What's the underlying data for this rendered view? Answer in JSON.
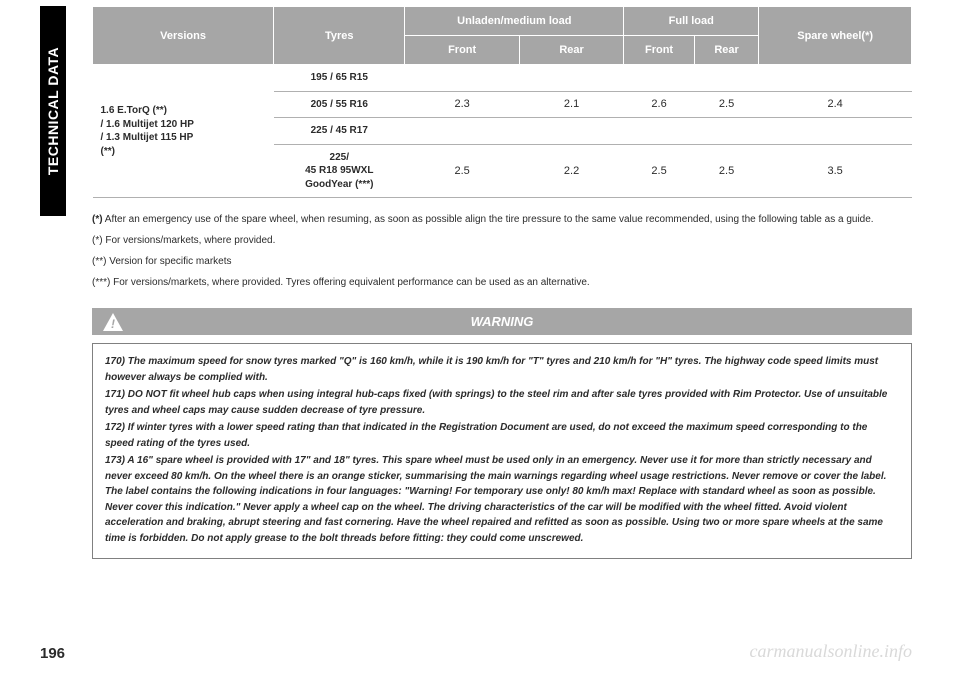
{
  "side_tab": "TECHNICAL DATA",
  "colors": {
    "header_bg": "#a6a6a6",
    "header_fg": "#ffffff",
    "cell_border": "#b0b0b0",
    "text": "#2b2b2b",
    "warning_border": "#808080",
    "watermark": "#d9d9d9",
    "side_bg": "#000000",
    "side_fg": "#ffffff"
  },
  "typography": {
    "base_font": "Arial, Helvetica, sans-serif",
    "table_font_size_pt": 11,
    "notes_font_size_pt": 10,
    "warning_body_font_size_pt": 10,
    "page_number_font_size_pt": 15
  },
  "table": {
    "headers": {
      "versions": "Versions",
      "tyres": "Tyres",
      "unladen": "Unladen/medium load",
      "full": "Full load",
      "spare": "Spare wheel(*)",
      "front": "Front",
      "rear": "Rear"
    },
    "version_cell": "1.6 E.TorQ (**)\n/ 1.6 Multijet 120 HP\n/ 1.3 Multijet 115 HP\n(**)",
    "rows": [
      {
        "tyre": "195 / 65 R15",
        "vals": [
          "",
          "",
          "",
          "",
          ""
        ]
      },
      {
        "tyre": "205 / 55 R16",
        "vals": [
          "2.3",
          "2.1",
          "2.6",
          "2.5",
          "2.4"
        ]
      },
      {
        "tyre": "225 / 45 R17",
        "vals": [
          "",
          "",
          "",
          "",
          ""
        ]
      },
      {
        "tyre": "225/\n45 R18 95WXL\nGoodYear (***)",
        "vals": [
          "2.5",
          "2.2",
          "2.5",
          "2.5",
          "3.5"
        ]
      }
    ]
  },
  "notes": {
    "n1_b": "(*)",
    "n1": " After an emergency use of the spare wheel, when resuming, as soon as possible align the tire pressure to the same value recommended, using the following table as a guide.",
    "n2": "(*) For versions/markets, where provided.",
    "n3": "(**) Version for specific markets",
    "n4": "(***) For versions/markets, where provided. Tyres offering equivalent performance can be used as an alternative."
  },
  "warning": {
    "title": "WARNING",
    "p1": "170) The maximum speed for snow tyres marked \"Q\" is 160 km/h, while it is 190 km/h for \"T\" tyres and 210 km/h for \"H\" tyres. The highway code speed limits must however always be complied with.",
    "p2": "171) DO NOT fit wheel hub caps when using integral hub-caps fixed (with springs) to the steel rim and after sale tyres provided with Rim Protector. Use of unsuitable tyres and wheel caps may cause sudden decrease of tyre pressure.",
    "p3": "172) If winter tyres with a lower speed rating than that indicated in the Registration Document are used, do not exceed the maximum speed corresponding to the speed rating of the tyres used.",
    "p4": "173) A 16\" spare wheel is provided with 17\" and 18\" tyres. This spare wheel must be used only in an emergency. Never use it for more than strictly necessary and never exceed 80 km/h. On the wheel there is an orange sticker, summarising the main warnings regarding wheel usage restrictions. Never remove or cover the label. The label contains the following indications in four languages: \"Warning! For temporary use only! 80 km/h max! Replace with standard wheel as soon as possible. Never cover this indication.\" Never apply a wheel cap on the wheel. The driving characteristics of the car will be modified with the wheel fitted. Avoid violent acceleration and braking, abrupt steering and fast cornering. Have the wheel repaired and refitted as soon as possible. Using two or more spare wheels at the same time is forbidden. Do not apply grease to the bolt threads before fitting: they could come unscrewed."
  },
  "page_number": "196",
  "watermark": "carmanualsonline.info"
}
